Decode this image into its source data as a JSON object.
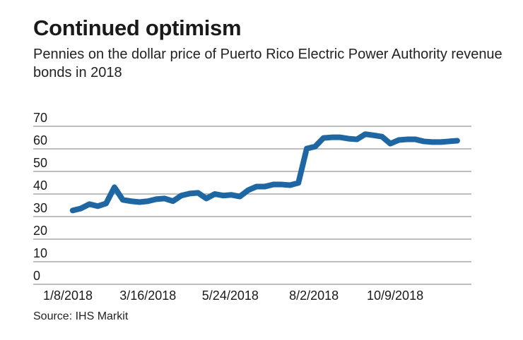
{
  "chart_data": {
    "type": "line",
    "title": "Continued optimism",
    "subtitle": "Pennies on the dollar price of Puerto Rico Electric Power Authority revenue bonds in 2018",
    "source": "Source: IHS Markit",
    "xlabel": "",
    "ylabel": "",
    "ylim": [
      0,
      70
    ],
    "yticks": [
      0,
      10,
      20,
      30,
      40,
      50,
      60,
      70
    ],
    "xticks": [
      "1/8/2018",
      "3/16/2018",
      "5/24/2018",
      "8/2/2018",
      "10/9/2018"
    ],
    "grid": true,
    "line_color": "#1f67a3",
    "series": [
      {
        "x_start": "2018-01-12",
        "x_step_days": 7,
        "values": [
          32.7,
          33.6,
          35.5,
          34.6,
          35.8,
          43,
          37.4,
          36.8,
          36.4,
          36.8,
          37.7,
          38,
          36.8,
          39.3,
          40.2,
          40.5,
          38,
          40,
          39.3,
          39.6,
          38.9,
          41.7,
          43.3,
          43.3,
          44.2,
          44.2,
          43.9,
          44.9,
          60.1,
          61,
          64.8,
          65.1,
          65.1,
          64.5,
          64.2,
          66.5,
          66,
          65.4,
          62.3,
          63.9,
          64.2,
          64.2,
          63.3,
          63,
          63,
          63.3,
          63.6
        ]
      }
    ]
  }
}
